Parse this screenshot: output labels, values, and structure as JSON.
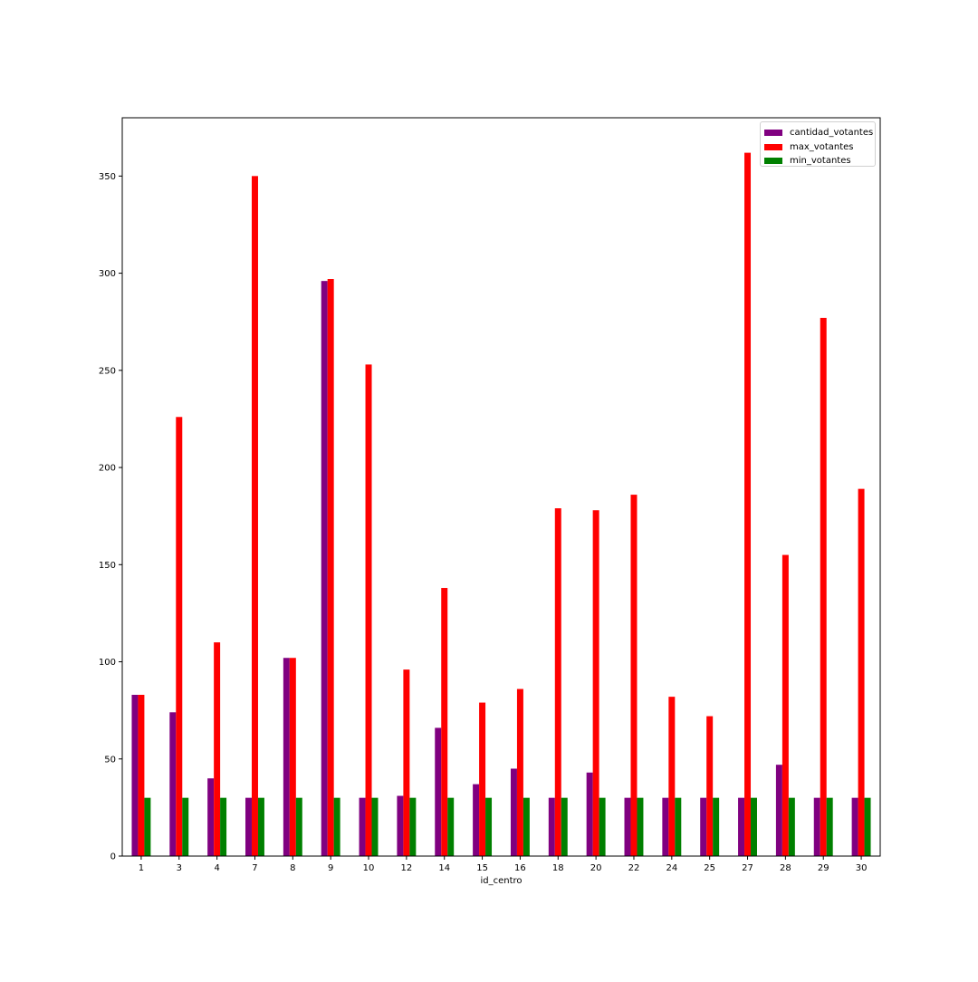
{
  "chart_data": {
    "type": "bar",
    "xlabel": "id_centro",
    "ylabel": "",
    "title": "",
    "categories": [
      "1",
      "3",
      "4",
      "7",
      "8",
      "9",
      "10",
      "12",
      "14",
      "15",
      "16",
      "18",
      "20",
      "22",
      "24",
      "25",
      "27",
      "28",
      "29",
      "30"
    ],
    "ylim": [
      0,
      380
    ],
    "yticks": [
      0,
      50,
      100,
      150,
      200,
      250,
      300,
      350
    ],
    "legend_position": "top-right",
    "grid": false,
    "series": [
      {
        "name": "cantidad_votantes",
        "color": "#800080",
        "values": [
          83,
          74,
          40,
          30,
          102,
          296,
          30,
          31,
          66,
          37,
          45,
          30,
          43,
          30,
          30,
          30,
          30,
          47,
          30,
          30
        ]
      },
      {
        "name": "max_votantes",
        "color": "#ff0000",
        "values": [
          83,
          226,
          110,
          350,
          102,
          297,
          253,
          96,
          138,
          79,
          86,
          179,
          178,
          186,
          82,
          72,
          362,
          155,
          277,
          189
        ]
      },
      {
        "name": "min_votantes",
        "color": "#008000",
        "values": [
          30,
          30,
          30,
          30,
          30,
          30,
          30,
          30,
          30,
          30,
          30,
          30,
          30,
          30,
          30,
          30,
          30,
          30,
          30,
          30
        ]
      }
    ]
  }
}
